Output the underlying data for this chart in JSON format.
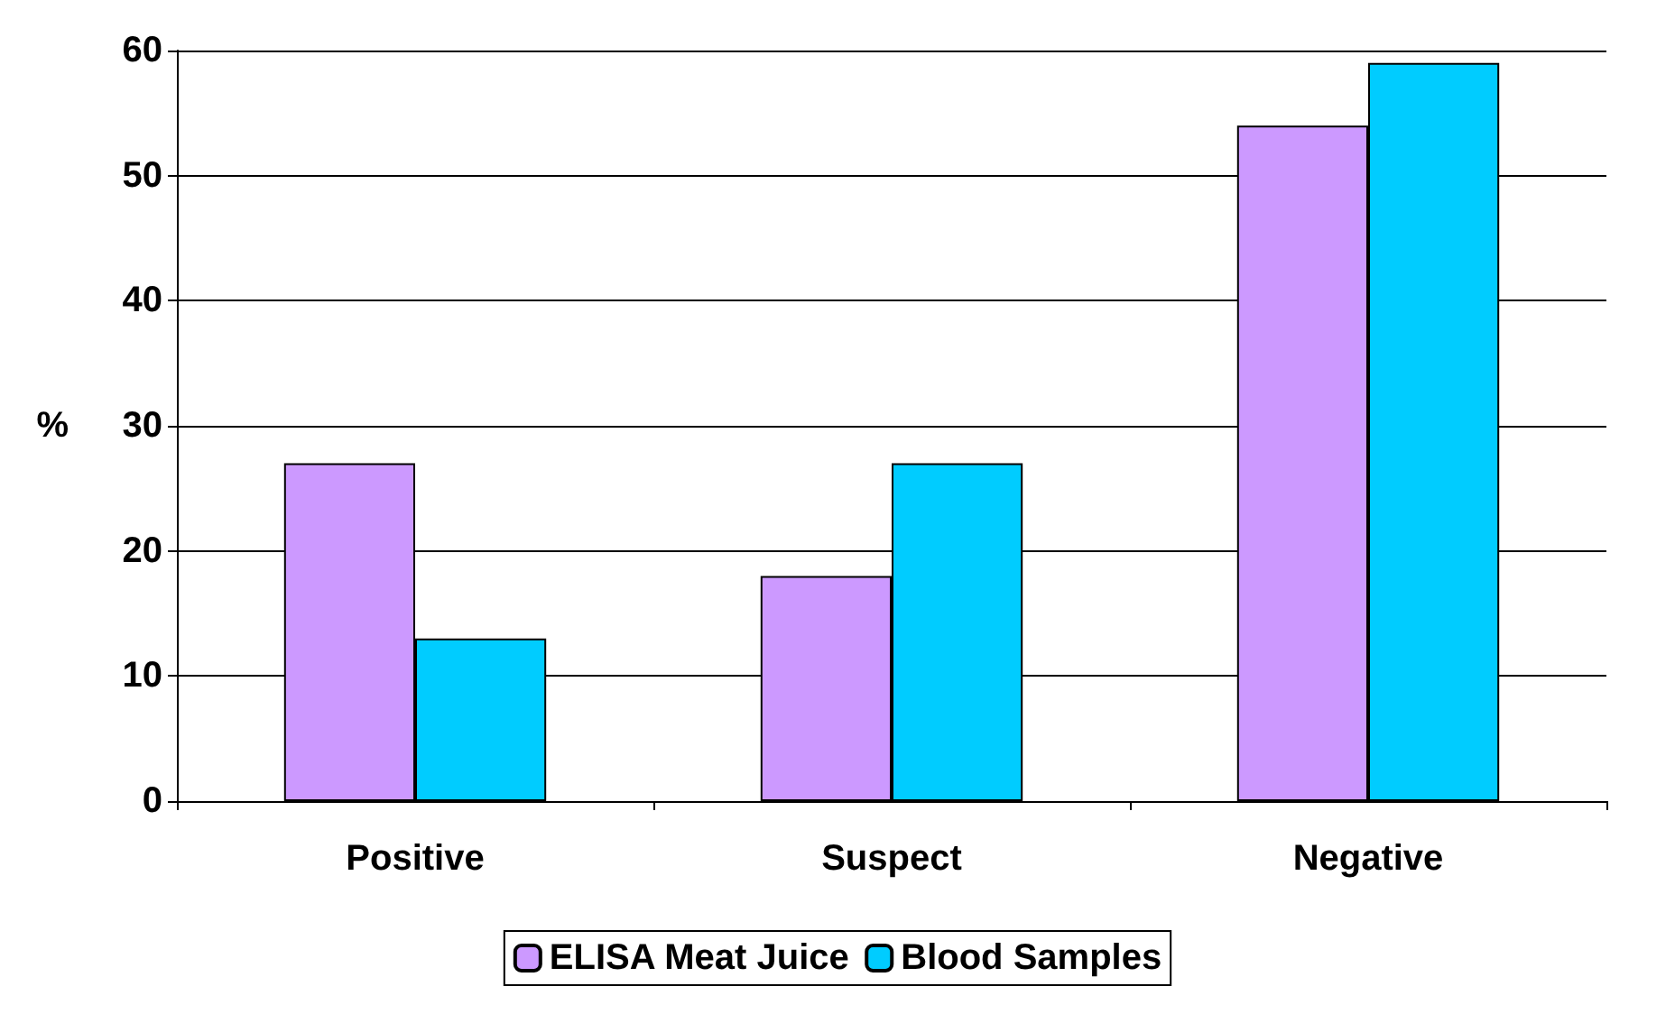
{
  "chart_data": {
    "type": "bar",
    "ylabel": "%",
    "categories": [
      "Positive",
      "Suspect",
      "Negative"
    ],
    "series": [
      {
        "name": "ELISA Meat Juice",
        "color": "#cc99ff",
        "values": [
          27,
          18,
          54
        ]
      },
      {
        "name": "Blood Samples",
        "color": "#00ccff",
        "values": [
          13,
          27,
          59
        ]
      }
    ],
    "ylim": [
      0,
      60
    ],
    "yticks": [
      0,
      10,
      20,
      30,
      40,
      50,
      60
    ],
    "grid": "y",
    "legend": "bottom"
  }
}
